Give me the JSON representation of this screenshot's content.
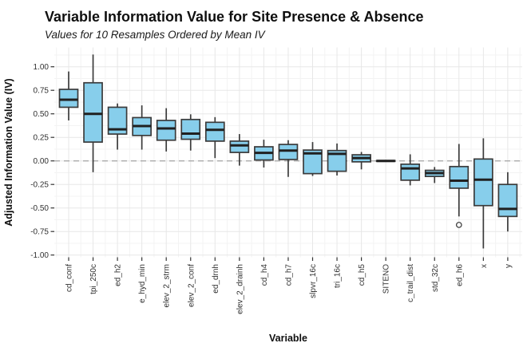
{
  "header": {
    "title": "Variable Information Value for Site Presence & Absence",
    "subtitle": "Values for 10 Resamples Ordered by Mean IV"
  },
  "chart_data": {
    "type": "box",
    "title": "Variable Information Value for Site Presence & Absence",
    "subtitle": "Values for 10 Resamples Ordered by Mean IV",
    "xlabel": "Variable",
    "ylabel": "Adjusted Information Value (IV)",
    "ylim": [
      -1.02,
      1.2
    ],
    "grid": true,
    "legend": "none",
    "zero_reference_line": {
      "y": 0.0,
      "style": "dashed"
    },
    "yticks": {
      "values": [
        1.0,
        0.75,
        0.5,
        0.25,
        0.0,
        -0.25,
        -0.5,
        -0.75,
        -1.0
      ],
      "labels": [
        "1.00",
        "0.75",
        "0.50",
        "0.25",
        "0.00",
        "-0.25",
        "-0.50",
        "-0.75",
        "-1.00"
      ]
    },
    "categories": [
      "cd_conf",
      "tpi_250c",
      "ed_h2",
      "e_hyd_min",
      "elev_2_strm",
      "elev_2_conf",
      "ed_drnh",
      "elev_2_drainh",
      "cd_h4",
      "cd_h7",
      "slpvr_16c",
      "tri_16c",
      "cd_h5",
      "SITENO",
      "c_trail_dist",
      "std_32c",
      "ed_h6",
      "x",
      "y"
    ],
    "boxes": [
      {
        "name": "cd_conf",
        "low": 0.43,
        "q1": 0.57,
        "median": 0.65,
        "q3": 0.76,
        "high": 0.95,
        "outliers": []
      },
      {
        "name": "tpi_250c",
        "low": -0.12,
        "q1": 0.2,
        "median": 0.5,
        "q3": 0.83,
        "high": 1.13,
        "outliers": []
      },
      {
        "name": "ed_h2",
        "low": 0.12,
        "q1": 0.285,
        "median": 0.335,
        "q3": 0.57,
        "high": 0.61,
        "outliers": []
      },
      {
        "name": "e_hyd_min",
        "low": 0.12,
        "q1": 0.27,
        "median": 0.37,
        "q3": 0.46,
        "high": 0.59,
        "outliers": []
      },
      {
        "name": "elev_2_strm",
        "low": 0.1,
        "q1": 0.22,
        "median": 0.345,
        "q3": 0.43,
        "high": 0.56,
        "outliers": []
      },
      {
        "name": "elev_2_conf",
        "low": 0.11,
        "q1": 0.23,
        "median": 0.29,
        "q3": 0.44,
        "high": 0.495,
        "outliers": []
      },
      {
        "name": "ed_drnh",
        "low": 0.03,
        "q1": 0.21,
        "median": 0.33,
        "q3": 0.41,
        "high": 0.465,
        "outliers": []
      },
      {
        "name": "elev_2_drainh",
        "low": -0.05,
        "q1": 0.09,
        "median": 0.165,
        "q3": 0.21,
        "high": 0.285,
        "outliers": []
      },
      {
        "name": "cd_h4",
        "low": -0.07,
        "q1": 0.01,
        "median": 0.085,
        "q3": 0.15,
        "high": 0.225,
        "outliers": []
      },
      {
        "name": "cd_h7",
        "low": -0.17,
        "q1": 0.015,
        "median": 0.11,
        "q3": 0.175,
        "high": 0.22,
        "outliers": []
      },
      {
        "name": "slpvr_16c",
        "low": -0.16,
        "q1": -0.135,
        "median": 0.08,
        "q3": 0.115,
        "high": 0.2,
        "outliers": []
      },
      {
        "name": "tri_16c",
        "low": -0.155,
        "q1": -0.11,
        "median": 0.075,
        "q3": 0.11,
        "high": 0.185,
        "outliers": []
      },
      {
        "name": "cd_h5",
        "low": -0.09,
        "q1": -0.01,
        "median": 0.03,
        "q3": 0.065,
        "high": 0.095,
        "outliers": []
      },
      {
        "name": "SITENO",
        "low": -0.008,
        "q1": -0.005,
        "median": 0.0,
        "q3": 0.004,
        "high": 0.006,
        "outliers": []
      },
      {
        "name": "c_trail_dist",
        "low": -0.26,
        "q1": -0.205,
        "median": -0.08,
        "q3": -0.035,
        "high": 0.07,
        "outliers": []
      },
      {
        "name": "std_32c",
        "low": -0.235,
        "q1": -0.165,
        "median": -0.13,
        "q3": -0.1,
        "high": -0.065,
        "outliers": []
      },
      {
        "name": "ed_h6",
        "low": -0.59,
        "q1": -0.29,
        "median": -0.21,
        "q3": -0.06,
        "high": 0.18,
        "outliers": [
          -0.68
        ]
      },
      {
        "name": "x",
        "low": -0.93,
        "q1": -0.475,
        "median": -0.2,
        "q3": 0.02,
        "high": 0.24,
        "outliers": []
      },
      {
        "name": "y",
        "low": -0.75,
        "q1": -0.59,
        "median": -0.51,
        "q3": -0.25,
        "high": -0.12,
        "outliers": []
      }
    ],
    "colors": {
      "box_fill": "#87CEEB",
      "box_stroke": "#3B3B3B",
      "median_line": "#202020",
      "whisker": "#3B3B3B",
      "outlier_stroke": "#404040",
      "grid_major": "#E7E7E7",
      "grid_minor": "#F3F3F3",
      "zero_line": "#ABABAB",
      "tick_mark": "#333333",
      "tick_label": "#303030",
      "panel_background": "#FFFFFF"
    }
  }
}
